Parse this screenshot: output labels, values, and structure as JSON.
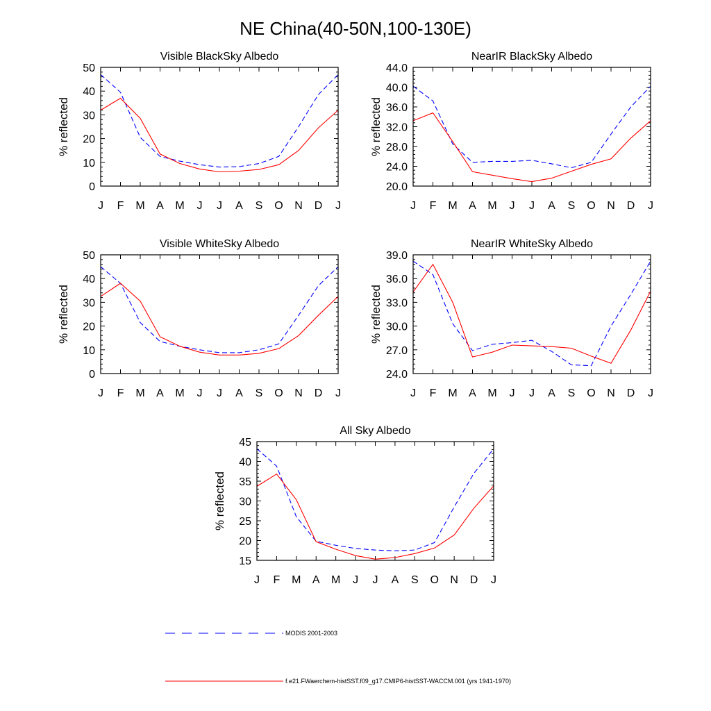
{
  "figure": {
    "title": "NE China(40-50N,100-130E)"
  },
  "colors": {
    "modis": "#0000ff",
    "model": "#ff0000",
    "axis": "#000000"
  },
  "legend": {
    "items": [
      {
        "label": "MODIS 2001-2003",
        "color": "#0000ff",
        "style": "dashed"
      },
      {
        "label": "f.e21.FWaerchem-histSST.f09_g17.CMIP6-histSST-WACCM.001 (yrs 1941-1970)",
        "color": "#ff0000",
        "style": "solid"
      }
    ]
  },
  "chart_data": [
    {
      "type": "line",
      "title": "Visible BlackSky Albedo",
      "ylabel": "% reflected",
      "categories": [
        "J",
        "F",
        "M",
        "A",
        "M",
        "J",
        "J",
        "A",
        "S",
        "O",
        "N",
        "D",
        "J"
      ],
      "ylim": [
        0,
        50
      ],
      "yticks": [
        "0",
        "10",
        "20",
        "30",
        "40",
        "50"
      ],
      "yticks_values": [
        0,
        10,
        20,
        30,
        40,
        50
      ],
      "series": [
        {
          "name": "MODIS 2001-2003",
          "values": [
            47.0,
            39.5,
            20.5,
            12.5,
            10.5,
            9.0,
            8.0,
            8.2,
            9.5,
            12.5,
            25.0,
            38.5,
            47.0
          ]
        },
        {
          "name": "f.e21.FWaerchem-histSST.f09_g17.CMIP6-histSST-WACCM.001 (yrs 1941-1970)",
          "values": [
            32.0,
            37.0,
            28.5,
            13.5,
            9.5,
            7.2,
            6.0,
            6.3,
            7.0,
            9.0,
            15.0,
            24.5,
            32.0
          ]
        }
      ]
    },
    {
      "type": "line",
      "title": "NearIR BlackSky Albedo",
      "ylabel": "% reflected",
      "categories": [
        "J",
        "F",
        "M",
        "A",
        "M",
        "J",
        "J",
        "A",
        "S",
        "O",
        "N",
        "D",
        "J"
      ],
      "ylim": [
        20,
        44
      ],
      "yticks": [
        "20.0",
        "24.0",
        "28.0",
        "32.0",
        "36.0",
        "40.0",
        "44.0"
      ],
      "yticks_values": [
        20,
        24,
        28,
        32,
        36,
        40,
        44
      ],
      "series": [
        {
          "name": "MODIS 2001-2003",
          "values": [
            40.2,
            37.2,
            28.5,
            24.8,
            25.0,
            25.0,
            25.2,
            24.5,
            23.7,
            24.8,
            30.5,
            36.0,
            40.2
          ]
        },
        {
          "name": "f.e21.FWaerchem-histSST.f09_g17.CMIP6-histSST-WACCM.001 (yrs 1941-1970)",
          "values": [
            33.2,
            34.8,
            29.0,
            22.9,
            22.2,
            21.5,
            20.9,
            21.6,
            23.0,
            24.4,
            25.5,
            29.7,
            33.2
          ]
        }
      ]
    },
    {
      "type": "line",
      "title": "Visible WhiteSky Albedo",
      "ylabel": "% reflected",
      "categories": [
        "J",
        "F",
        "M",
        "A",
        "M",
        "J",
        "J",
        "A",
        "S",
        "O",
        "N",
        "D",
        "J"
      ],
      "ylim": [
        0,
        50
      ],
      "yticks": [
        "0",
        "10",
        "20",
        "30",
        "40",
        "50"
      ],
      "yticks_values": [
        0,
        10,
        20,
        30,
        40,
        50
      ],
      "series": [
        {
          "name": "MODIS 2001-2003",
          "values": [
            45.0,
            38.0,
            21.5,
            13.5,
            11.5,
            10.0,
            8.8,
            8.8,
            10.0,
            12.5,
            24.5,
            37.0,
            45.0
          ]
        },
        {
          "name": "f.e21.FWaerchem-histSST.f09_g17.CMIP6-histSST-WACCM.001 (yrs 1941-1970)",
          "values": [
            32.5,
            38.0,
            30.5,
            15.5,
            11.5,
            9.0,
            7.8,
            7.8,
            8.5,
            10.5,
            16.0,
            24.5,
            32.5
          ]
        }
      ]
    },
    {
      "type": "line",
      "title": "NearIR WhiteSky Albedo",
      "ylabel": "% reflected",
      "categories": [
        "J",
        "F",
        "M",
        "A",
        "M",
        "J",
        "J",
        "A",
        "S",
        "O",
        "N",
        "D",
        "J"
      ],
      "ylim": [
        24,
        39
      ],
      "yticks": [
        "24.0",
        "27.0",
        "30.0",
        "33.0",
        "36.0",
        "39.0"
      ],
      "yticks_values": [
        24,
        27,
        30,
        33,
        36,
        39
      ],
      "series": [
        {
          "name": "MODIS 2001-2003",
          "values": [
            38.2,
            36.5,
            30.3,
            26.9,
            27.7,
            27.9,
            28.2,
            26.8,
            25.1,
            25.0,
            30.0,
            34.0,
            38.2
          ]
        },
        {
          "name": "f.e21.FWaerchem-histSST.f09_g17.CMIP6-histSST-WACCM.001 (yrs 1941-1970)",
          "values": [
            34.3,
            37.8,
            33.0,
            26.1,
            26.7,
            27.6,
            27.5,
            27.4,
            27.2,
            26.2,
            25.3,
            29.5,
            34.4
          ]
        }
      ]
    },
    {
      "type": "line",
      "title": "All Sky Albedo",
      "ylabel": "% reflected",
      "categories": [
        "J",
        "F",
        "M",
        "A",
        "M",
        "J",
        "J",
        "A",
        "S",
        "O",
        "N",
        "D",
        "J"
      ],
      "ylim": [
        15,
        45
      ],
      "yticks": [
        "15",
        "20",
        "25",
        "30",
        "35",
        "40",
        "45"
      ],
      "yticks_values": [
        15,
        20,
        25,
        30,
        35,
        40,
        45
      ],
      "series": [
        {
          "name": "MODIS 2001-2003",
          "values": [
            43.2,
            38.8,
            26.0,
            19.8,
            18.8,
            18.0,
            17.6,
            17.4,
            17.6,
            19.5,
            28.5,
            37.0,
            43.2
          ]
        },
        {
          "name": "f.e21.FWaerchem-histSST.f09_g17.CMIP6-histSST-WACCM.001 (yrs 1941-1970)",
          "values": [
            33.7,
            36.8,
            30.3,
            19.7,
            17.8,
            16.2,
            15.3,
            15.7,
            16.7,
            18.1,
            21.4,
            28.2,
            33.8
          ]
        }
      ]
    }
  ]
}
